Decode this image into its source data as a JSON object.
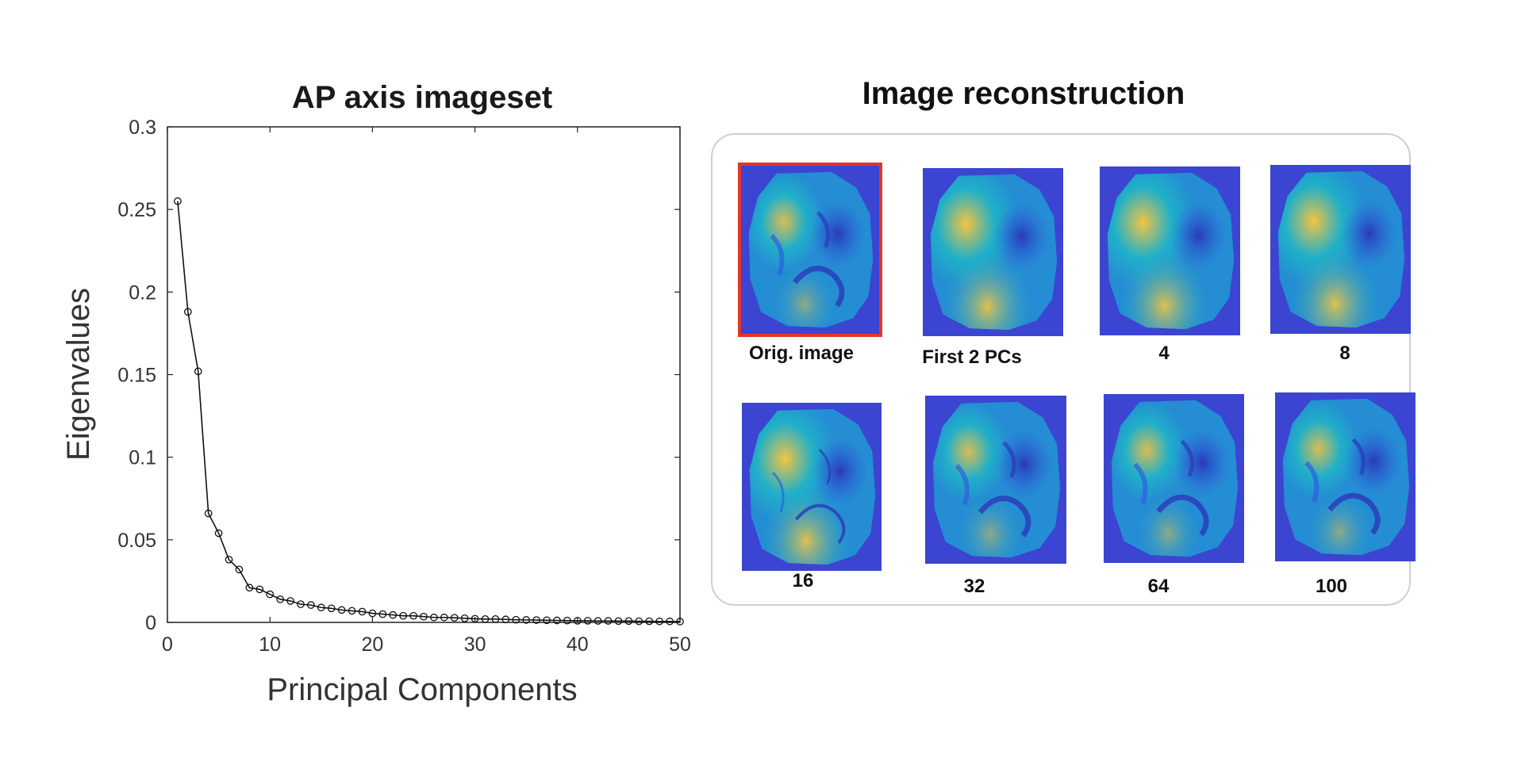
{
  "chart_data": {
    "type": "line",
    "title": "AP axis imageset",
    "xlabel": "Principal Components",
    "ylabel": "Eigenvalues",
    "xlim": [
      0,
      50
    ],
    "ylim": [
      0,
      0.3
    ],
    "xticks": [
      0,
      10,
      20,
      30,
      40,
      50
    ],
    "yticks": [
      0,
      0.05,
      0.1,
      0.15,
      0.2,
      0.25,
      0.3
    ],
    "yticklabels": [
      "0",
      "0.05",
      "0.1",
      "0.15",
      "0.2",
      "0.25",
      "0.3"
    ],
    "marker": "circle",
    "line_color": "#111111",
    "grid": false,
    "series": [
      {
        "x": [
          1,
          2,
          3,
          4,
          5,
          6,
          7,
          8,
          9,
          10,
          11,
          12,
          13,
          14,
          15,
          16,
          17,
          18,
          19,
          20,
          21,
          22,
          23,
          24,
          25,
          26,
          27,
          28,
          29,
          30,
          31,
          32,
          33,
          34,
          35,
          36,
          37,
          38,
          39,
          40,
          41,
          42,
          43,
          44,
          45,
          46,
          47,
          48,
          49,
          50
        ],
        "values": [
          0.255,
          0.188,
          0.152,
          0.066,
          0.054,
          0.038,
          0.032,
          0.021,
          0.02,
          0.017,
          0.014,
          0.013,
          0.011,
          0.0105,
          0.009,
          0.0085,
          0.0075,
          0.007,
          0.0065,
          0.0055,
          0.005,
          0.0045,
          0.004,
          0.004,
          0.0035,
          0.003,
          0.003,
          0.0028,
          0.0025,
          0.0022,
          0.002,
          0.002,
          0.0018,
          0.0016,
          0.0015,
          0.0014,
          0.0013,
          0.0012,
          0.0011,
          0.001,
          0.001,
          0.0009,
          0.0009,
          0.0008,
          0.0008,
          0.0007,
          0.0007,
          0.0006,
          0.0006,
          0.0005
        ]
      }
    ]
  },
  "reconstruction": {
    "title": "Image reconstruction",
    "thumbnails": [
      {
        "caption": "Orig. image",
        "selected": true,
        "detail": "sharp"
      },
      {
        "caption": "First 2 PCs",
        "selected": false,
        "detail": "smooth"
      },
      {
        "caption": "4",
        "selected": false,
        "detail": "smooth"
      },
      {
        "caption": "8",
        "selected": false,
        "detail": "smooth"
      },
      {
        "caption": "16",
        "selected": false,
        "detail": "medium"
      },
      {
        "caption": "32",
        "selected": false,
        "detail": "sharp"
      },
      {
        "caption": "64",
        "selected": false,
        "detail": "sharp"
      },
      {
        "caption": "100",
        "selected": false,
        "detail": "sharp"
      }
    ],
    "colors": {
      "background": "#3b45d1",
      "low": "#2e5fe0",
      "mid": "#1fb3c8",
      "high": "#f5c540",
      "frame": "#e3342a"
    }
  }
}
